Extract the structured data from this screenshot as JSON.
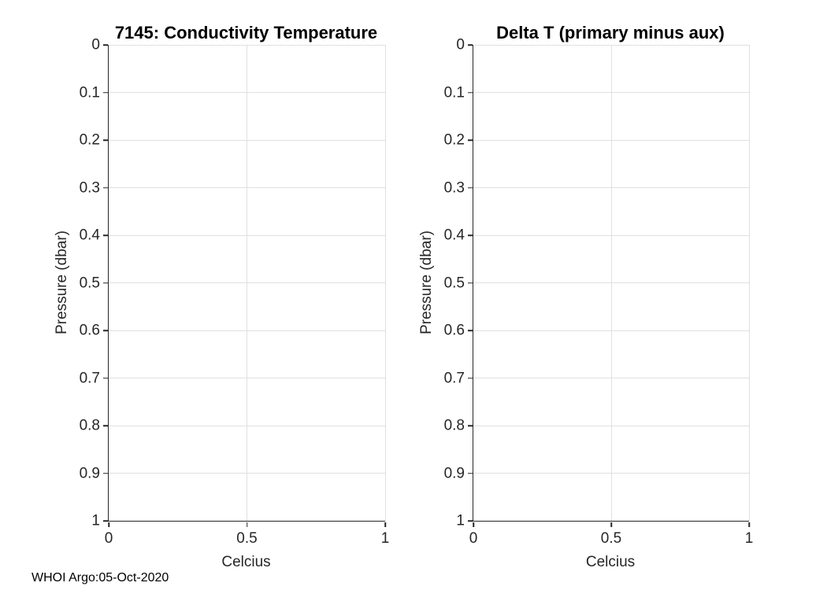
{
  "figure": {
    "background": "#ffffff",
    "axis_color": "#262626",
    "grid_color": "#e0e0e0",
    "footer": "WHOI Argo:05-Oct-2020"
  },
  "chart_data": [
    {
      "type": "line",
      "title": "7145: Conductivity Temperature",
      "xlabel": "Celcius",
      "ylabel": "Pressure (dbar)",
      "xlim": [
        0,
        1
      ],
      "ylim": [
        0,
        1
      ],
      "y_axis_direction": "reversed (0 at top, 1 at bottom)",
      "xticks": [
        "0",
        "0.5",
        "1"
      ],
      "yticks": [
        "0",
        "0.1",
        "0.2",
        "0.3",
        "0.4",
        "0.5",
        "0.6",
        "0.7",
        "0.8",
        "0.9",
        "1"
      ],
      "grid": true,
      "legend": null,
      "series": []
    },
    {
      "type": "line",
      "title": "Delta T (primary minus aux)",
      "xlabel": "Celcius",
      "ylabel": "Pressure (dbar)",
      "xlim": [
        0,
        1
      ],
      "ylim": [
        0,
        1
      ],
      "y_axis_direction": "reversed (0 at top, 1 at bottom)",
      "xticks": [
        "0",
        "0.5",
        "1"
      ],
      "yticks": [
        "0",
        "0.1",
        "0.2",
        "0.3",
        "0.4",
        "0.5",
        "0.6",
        "0.7",
        "0.8",
        "0.9",
        "1"
      ],
      "grid": true,
      "legend": null,
      "series": []
    }
  ]
}
